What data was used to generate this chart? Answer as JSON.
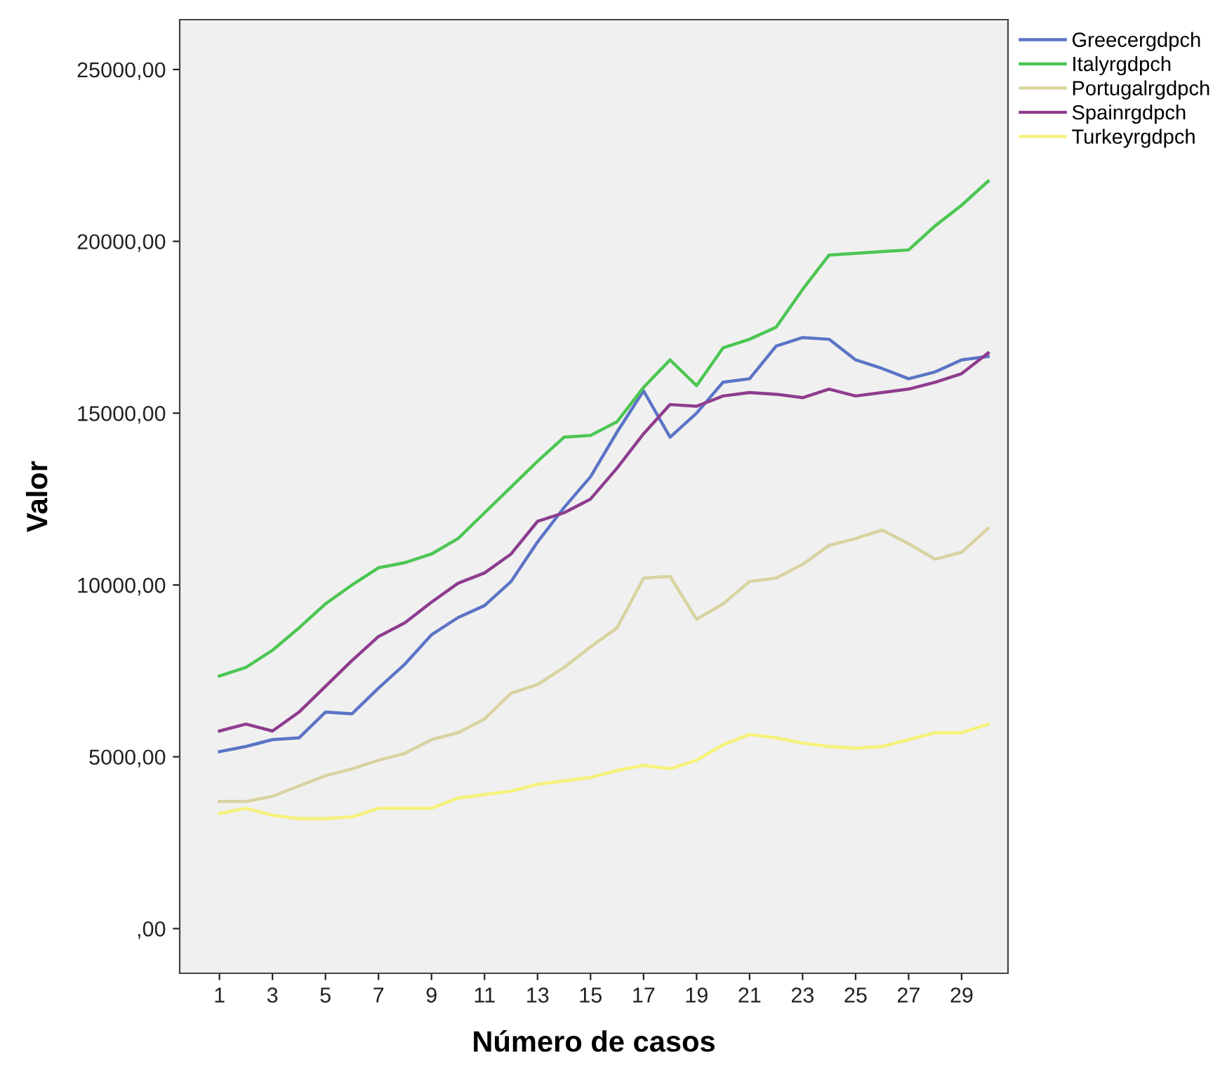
{
  "chart_data": {
    "type": "line",
    "xlabel": "Número de casos",
    "ylabel": "Valor",
    "x": [
      1,
      2,
      3,
      4,
      5,
      6,
      7,
      8,
      9,
      10,
      11,
      12,
      13,
      14,
      15,
      16,
      17,
      18,
      19,
      20,
      21,
      22,
      23,
      24,
      25,
      26,
      27,
      28,
      29,
      30
    ],
    "series": [
      {
        "name": "Greecergdpch",
        "color": "#5b74c6",
        "values": [
          5150,
          5300,
          5500,
          5550,
          6300,
          6250,
          7000,
          7700,
          8550,
          9050,
          9400,
          10100,
          11250,
          12250,
          13150,
          14450,
          15650,
          14300,
          15000,
          15900,
          16000,
          16950,
          17200,
          17150,
          16550,
          16300,
          16000,
          16200,
          16550,
          16650
        ]
      },
      {
        "name": "Italyrgdpch",
        "color": "#4cc653",
        "values": [
          7350,
          7600,
          8100,
          8750,
          9450,
          10000,
          10500,
          10650,
          10900,
          11350,
          12100,
          12850,
          13600,
          14300,
          14350,
          14750,
          15750,
          16550,
          15800,
          16900,
          17150,
          17500,
          18600,
          19600,
          19650,
          19700,
          19750,
          20450,
          21050,
          21750
        ]
      },
      {
        "name": "Portugalrgdpch",
        "color": "#d8d3a0",
        "values": [
          3700,
          3700,
          3850,
          4150,
          4450,
          4650,
          4900,
          5100,
          5500,
          5700,
          6100,
          6850,
          7100,
          7600,
          8200,
          8750,
          10200,
          10250,
          9000,
          9450,
          10100,
          10200,
          10600,
          11150,
          11350,
          11600,
          11200,
          10750,
          10950,
          11650
        ]
      },
      {
        "name": "Spainrgdpch",
        "color": "#8e3c8e",
        "values": [
          5750,
          5950,
          5750,
          6300,
          7050,
          7800,
          8500,
          8900,
          9500,
          10050,
          10350,
          10900,
          11850,
          12100,
          12500,
          13400,
          14400,
          15250,
          15200,
          15500,
          15600,
          15550,
          15450,
          15700,
          15500,
          15600,
          15700,
          15900,
          16150,
          16750
        ]
      },
      {
        "name": "Turkeyrgdpch",
        "color": "#f5f27a",
        "values": [
          3350,
          3500,
          3300,
          3200,
          3200,
          3250,
          3500,
          3500,
          3500,
          3800,
          3900,
          4000,
          4200,
          4300,
          4400,
          4600,
          4750,
          4650,
          4900,
          5350,
          5650,
          5550,
          5400,
          5300,
          5250,
          5300,
          5500,
          5700,
          5700,
          5950
        ]
      }
    ],
    "xlim": [
      -0.5,
      30.75
    ],
    "xticks": [
      1,
      3,
      5,
      7,
      9,
      11,
      13,
      15,
      17,
      19,
      21,
      23,
      25,
      27,
      29
    ],
    "ylim": [
      -1300,
      26450
    ],
    "yticks": [
      {
        "value": 0,
        "label": ",00"
      },
      {
        "value": 5000,
        "label": "5000,00"
      },
      {
        "value": 10000,
        "label": "10000,00"
      },
      {
        "value": 15000,
        "label": "15000,00"
      },
      {
        "value": 20000,
        "label": "20000,00"
      },
      {
        "value": 25000,
        "label": "25000,00"
      }
    ],
    "legend": "top right",
    "grid": false,
    "marker": "none",
    "line_style": "solid"
  }
}
